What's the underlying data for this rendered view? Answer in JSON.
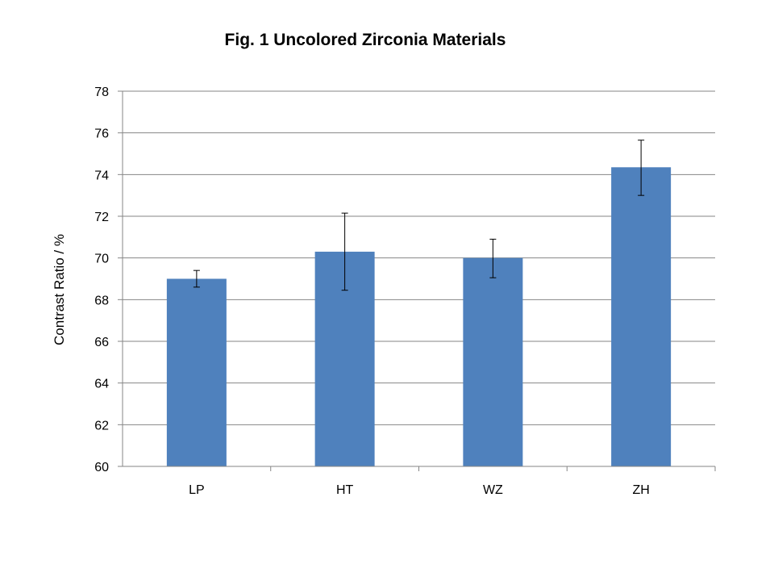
{
  "chart_data": {
    "type": "bar",
    "title": "Fig. 1 Uncolored Zirconia Materials",
    "xlabel": "",
    "ylabel": "Contrast Ratio / %",
    "categories": [
      "LP",
      "HT",
      "WZ",
      "ZH"
    ],
    "values": [
      69.0,
      70.3,
      70.0,
      74.35
    ],
    "error": [
      {
        "low": 68.6,
        "high": 69.4
      },
      {
        "low": 68.45,
        "high": 72.15
      },
      {
        "low": 69.05,
        "high": 70.9
      },
      {
        "low": 73.0,
        "high": 75.65
      }
    ],
    "ylim": [
      60,
      78
    ],
    "yticks": [
      "60",
      "62",
      "64",
      "66",
      "68",
      "70",
      "72",
      "74",
      "76",
      "78"
    ],
    "grid": true,
    "legend": "none",
    "bar_color": "#4f81bd",
    "grid_color": "#868686"
  }
}
